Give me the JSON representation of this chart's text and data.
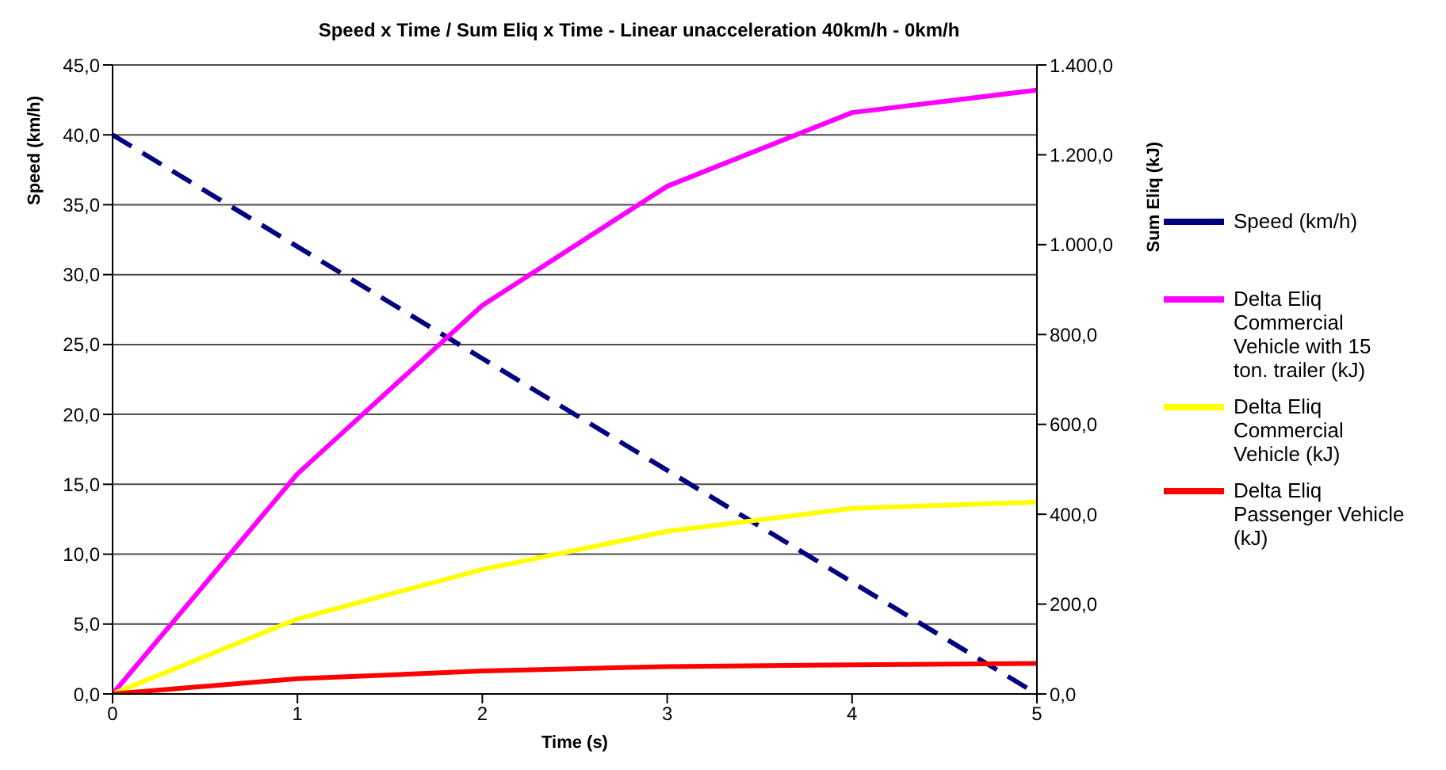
{
  "chart_data": {
    "type": "line",
    "title": "Speed x Time / Sum Eliq x Time - Linear unacceleration 40km/h - 0km/h",
    "xlabel": "Time (s)",
    "ylabel": "Speed (km/h)",
    "y2label": "Sum Eliq (kJ)",
    "x": [
      0,
      1,
      2,
      3,
      4,
      5
    ],
    "series": [
      {
        "name": "Speed (km/h)",
        "color": "#000080",
        "values": [
          40,
          32,
          24,
          16,
          8,
          0
        ],
        "line_style": "dashed"
      },
      {
        "name": "Delta Eliq Commercial Vehicle with 15 ton. trailer (kJ)",
        "color": "#ff00ff",
        "values": [
          0,
          490,
          865,
          1130,
          1294,
          1344
        ],
        "axis": "y2"
      },
      {
        "name": "Delta Eliq Commercial Vehicle (kJ)",
        "color": "#ffff00",
        "values": [
          0,
          167,
          277,
          362,
          413,
          427
        ],
        "axis": "y2"
      },
      {
        "name": "Delta Eliq Passenger Vehicle (kJ)",
        "color": "#ff0000",
        "values": [
          0,
          34,
          51,
          61,
          65,
          68
        ],
        "axis": "y2"
      }
    ],
    "xlim": [
      0,
      5
    ],
    "xticks": [
      0,
      1,
      2,
      3,
      4,
      5
    ],
    "ylim": [
      0,
      45
    ],
    "yticks": [
      {
        "value": 0,
        "label": "0,0"
      },
      {
        "value": 5,
        "label": "5,0"
      },
      {
        "value": 10,
        "label": "10,0"
      },
      {
        "value": 15,
        "label": "15,0"
      },
      {
        "value": 20,
        "label": "20,0"
      },
      {
        "value": 25,
        "label": "25,0"
      },
      {
        "value": 30,
        "label": "30,0"
      },
      {
        "value": 35,
        "label": "35,0"
      },
      {
        "value": 40,
        "label": "40,0"
      },
      {
        "value": 45,
        "label": "45,0"
      }
    ],
    "y2lim": [
      0,
      1400
    ],
    "y2ticks": [
      {
        "value": 0,
        "label": "0,0"
      },
      {
        "value": 200,
        "label": "200,0"
      },
      {
        "value": 400,
        "label": "400,0"
      },
      {
        "value": 600,
        "label": "600,0"
      },
      {
        "value": 800,
        "label": "800,0"
      },
      {
        "value": 1000,
        "label": "1.000,0"
      },
      {
        "value": 1200,
        "label": "1.200,0"
      },
      {
        "value": 1400,
        "label": "1.400,0"
      }
    ],
    "grid": "y",
    "legend": "right",
    "marker": "none"
  }
}
